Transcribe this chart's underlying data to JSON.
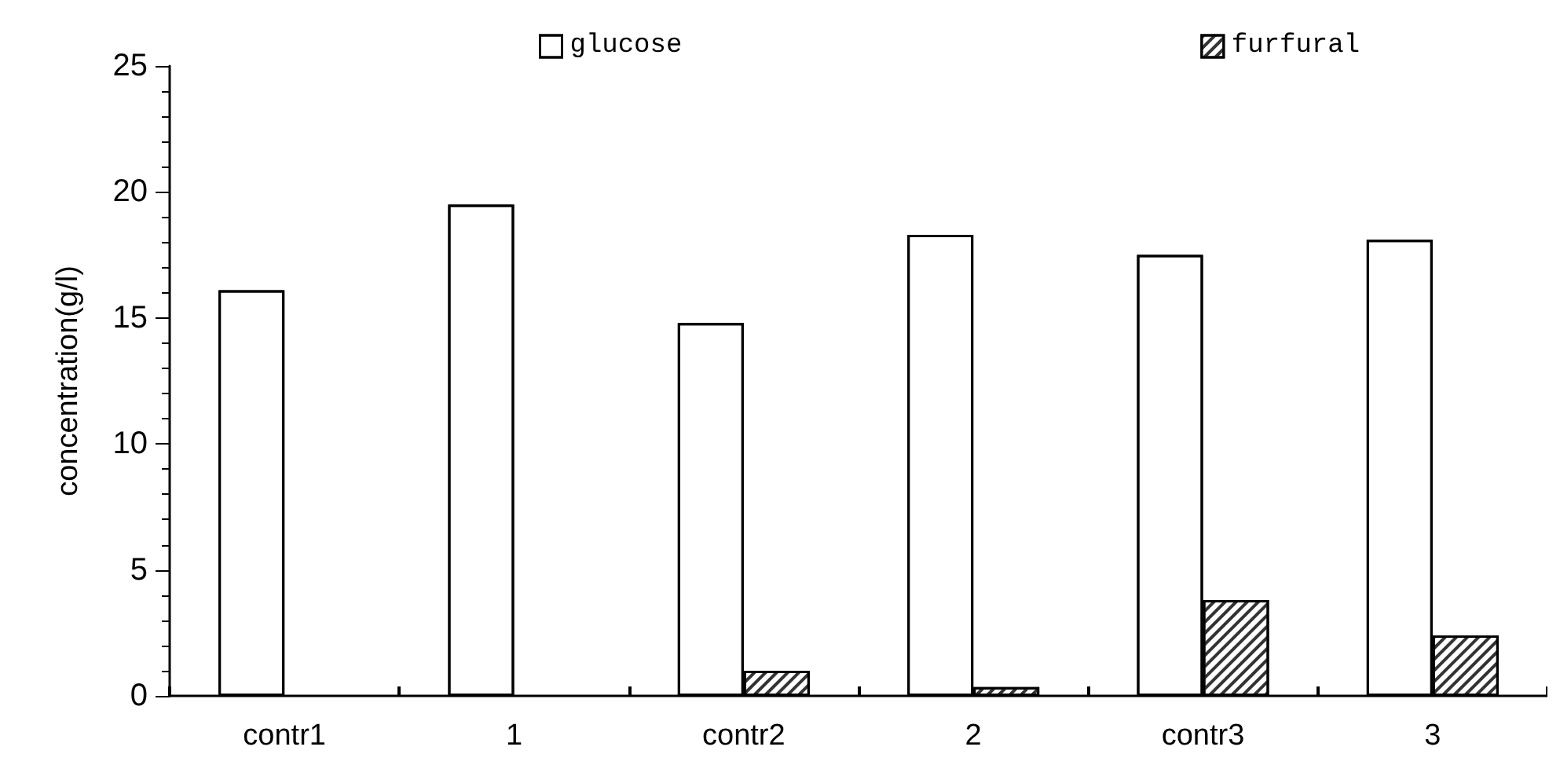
{
  "chart_data": {
    "type": "bar",
    "ylabel": "concentration(g/l)",
    "categories": [
      "contr1",
      "1",
      "contr2",
      "2",
      "contr3",
      "3"
    ],
    "series": [
      {
        "name": "glucose",
        "color": "#ffffff",
        "values": [
          16.1,
          19.5,
          14.8,
          18.3,
          17.5,
          18.1
        ]
      },
      {
        "name": "furfural",
        "color": "#ffffff",
        "values": [
          null,
          null,
          1.0,
          0.35,
          3.8,
          2.4
        ]
      }
    ],
    "ylim": [
      0,
      25
    ],
    "yticks": [
      0,
      5,
      10,
      15,
      20,
      25
    ],
    "grid": false,
    "legend": "top"
  }
}
